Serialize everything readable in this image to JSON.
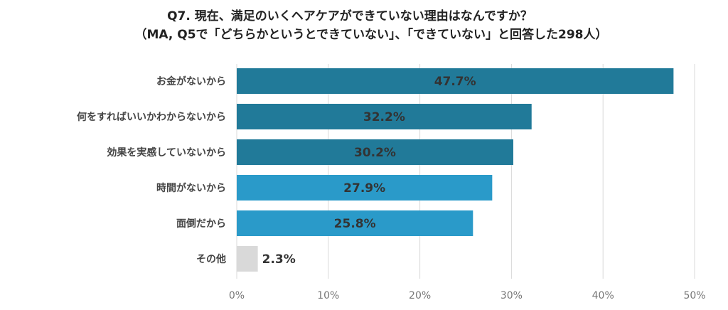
{
  "chart_data": {
    "type": "bar",
    "orientation": "horizontal",
    "title": "Q7. 現在、満足のいくヘアケアができていない理由はなんですか？",
    "subtitle": "（MA, Q5で「どちらかというとできていない」、「できていない」と回答した298人）",
    "categories": [
      "お金がないから",
      "何をすればいいかわからないから",
      "効果を実感していないから",
      "時間がないから",
      "面倒だから",
      "その他"
    ],
    "values": [
      47.7,
      32.2,
      30.2,
      27.9,
      25.8,
      2.3
    ],
    "labels": [
      "47.7%",
      "32.2%",
      "30.2%",
      "27.9%",
      "25.8%",
      "2.3%"
    ],
    "bar_colors": [
      "#217a99",
      "#217a99",
      "#217a99",
      "#2a9ac9",
      "#2a9ac9",
      "#d9d9d9"
    ],
    "xlim": [
      0,
      50
    ],
    "xticks": [
      "0%",
      "10%",
      "20%",
      "30%",
      "40%",
      "50%"
    ],
    "grid": true,
    "legend": "none"
  }
}
